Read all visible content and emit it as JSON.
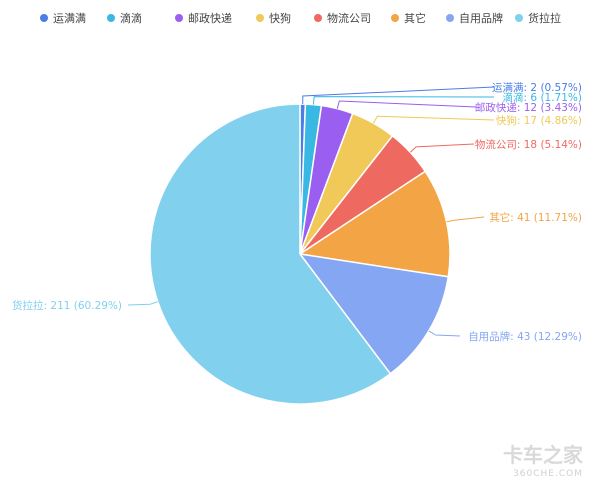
{
  "chart_data": {
    "type": "pie",
    "title": "",
    "legend_position": "top",
    "slices": [
      {
        "name": "运满满",
        "value": 2,
        "percent": "0.57%",
        "color": "#4a7de8"
      },
      {
        "name": "滴滴",
        "value": 6,
        "percent": "1.71%",
        "color": "#3ab8e4"
      },
      {
        "name": "邮政快递",
        "value": 12,
        "percent": "3.43%",
        "color": "#9a5ff0"
      },
      {
        "name": "快狗",
        "value": 17,
        "percent": "4.86%",
        "color": "#f0c958"
      },
      {
        "name": "物流公司",
        "value": 18,
        "percent": "5.14%",
        "color": "#ee6a60"
      },
      {
        "name": "其它",
        "value": 41,
        "percent": "11.71%",
        "color": "#f3a444"
      },
      {
        "name": "自用品牌",
        "value": 43,
        "percent": "12.29%",
        "color": "#85a6f2"
      },
      {
        "name": "货拉拉",
        "value": 211,
        "percent": "60.29%",
        "color": "#80d0ee"
      }
    ]
  },
  "watermark": {
    "line1": "卡车之家",
    "line2": "360CHE.COM"
  }
}
